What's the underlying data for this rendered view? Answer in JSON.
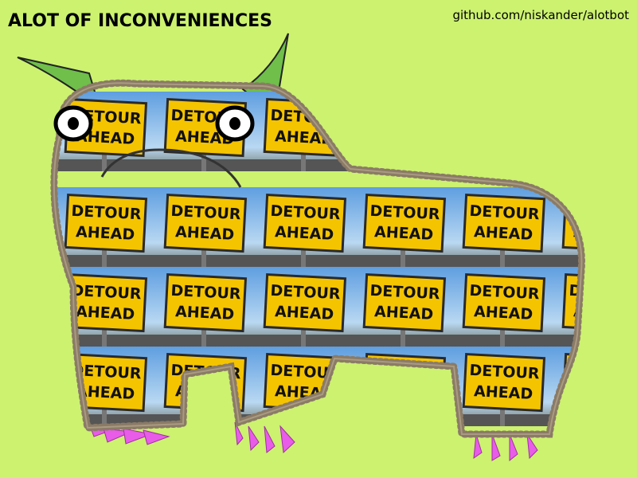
{
  "title": "ALOT OF INCONVENIENCES",
  "credit": "github.com/niskander/alotbot",
  "sign": {
    "line1": "DETOUR",
    "line2": "AHEAD"
  }
}
